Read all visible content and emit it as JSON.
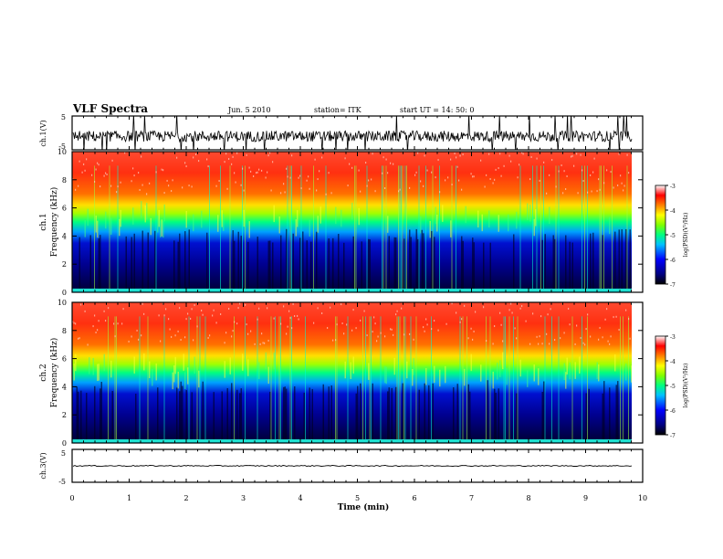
{
  "header": {
    "title": "VLF  Spectra",
    "date": "Jun. 5    2010",
    "station": "station= ITK",
    "start_ut": "start  UT  =   14: 50:  0"
  },
  "chart_data": [
    {
      "type": "line",
      "id": "ch1",
      "ylabel": "ch.1(V)",
      "ylim": [
        -5,
        5
      ],
      "y_ticks": [
        "5",
        "-5"
      ],
      "xlim": [
        0,
        10
      ],
      "description_series": "noisy voltage trace around -1 V with frequent spikes",
      "baseline": -1.0
    },
    {
      "type": "heatmap",
      "id": "ch1-spectrogram",
      "ylabel": "ch.1\nFrequency (kHz)",
      "ylim": [
        0,
        10
      ],
      "y_ticks": [
        "0",
        "2",
        "4",
        "6",
        "8",
        "10"
      ],
      "xlim": [
        0,
        9.8
      ],
      "colorbar": {
        "label": "log(PSD)(V²/Hz)",
        "ticks": [
          "-3",
          "-4",
          "-5",
          "-6",
          "-7"
        ],
        "range": [
          -7,
          -3
        ]
      }
    },
    {
      "type": "heatmap",
      "id": "ch2-spectrogram",
      "ylabel": "ch.2\nFrequency (kHz)",
      "ylim": [
        0,
        10
      ],
      "y_ticks": [
        "0",
        "2",
        "4",
        "6",
        "8",
        "10"
      ],
      "xlim": [
        0,
        9.8
      ],
      "colorbar": {
        "label": "log(PSD)(V²/Hz)",
        "ticks": [
          "-3",
          "-4",
          "-5",
          "-6",
          "-7"
        ],
        "range": [
          -7,
          -3
        ]
      }
    },
    {
      "type": "line",
      "id": "ch3",
      "ylabel": "ch.3(V)",
      "ylim": [
        -5,
        5
      ],
      "y_ticks": [
        "5",
        "-5"
      ],
      "xlim": [
        0,
        10
      ],
      "baseline": 0.0
    }
  ],
  "xaxis": {
    "label": "Time  (min)",
    "ticks": [
      "0",
      "1",
      "2",
      "3",
      "4",
      "5",
      "6",
      "7",
      "8",
      "9",
      "10"
    ],
    "range": [
      0,
      10
    ]
  }
}
